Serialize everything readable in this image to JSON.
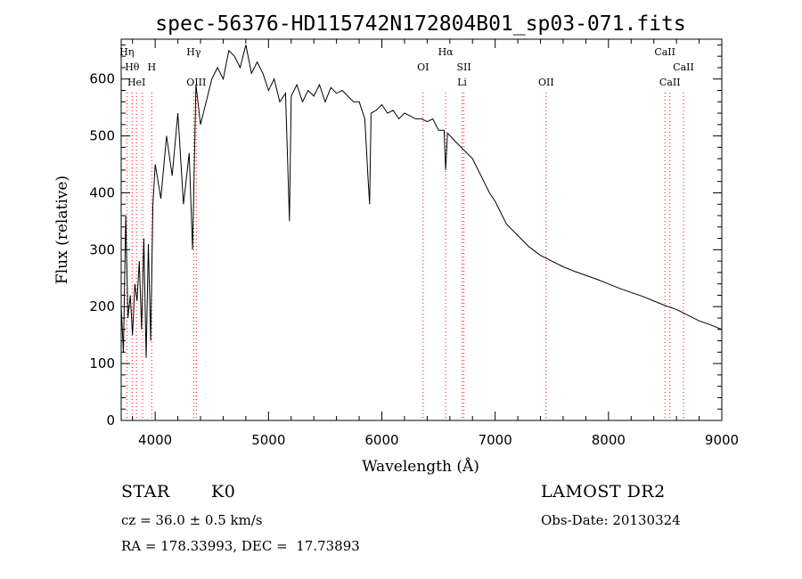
{
  "chart_data": {
    "type": "line",
    "title": "spec-56376-HD115742N172804B01_sp03-071.fits",
    "xlabel": "Wavelength (Å)",
    "ylabel": "Flux (relative)",
    "xlim": [
      3700,
      9000
    ],
    "ylim": [
      0,
      670
    ],
    "xticks": [
      4000,
      5000,
      6000,
      7000,
      8000,
      9000
    ],
    "yticks": [
      0,
      100,
      200,
      300,
      400,
      500,
      600
    ],
    "grid": false,
    "line_color": "#000000",
    "marker_color": "#ff0000",
    "series": [
      {
        "x": [
          3700,
          3720,
          3740,
          3760,
          3780,
          3800,
          3820,
          3840,
          3860,
          3880,
          3900,
          3920,
          3940,
          3960,
          3980,
          4000,
          4050,
          4100,
          4150,
          4200,
          4250,
          4300,
          4330,
          4360,
          4400,
          4450,
          4500,
          4550,
          4600,
          4650,
          4700,
          4750,
          4800,
          4850,
          4900,
          4950,
          5000,
          5050,
          5100,
          5150,
          5170,
          5185,
          5200,
          5250,
          5300,
          5350,
          5400,
          5450,
          5500,
          5550,
          5600,
          5650,
          5700,
          5750,
          5800,
          5850,
          5880,
          5892,
          5905,
          5950,
          6000,
          6050,
          6100,
          6150,
          6200,
          6250,
          6300,
          6350,
          6400,
          6450,
          6500,
          6550,
          6563,
          6580,
          6650,
          6700,
          6750,
          6800,
          6850,
          6900,
          6950,
          7000,
          7100,
          7200,
          7300,
          7400,
          7500,
          7600,
          7700,
          7800,
          7900,
          8000,
          8100,
          8200,
          8300,
          8400,
          8500,
          8600,
          8700,
          8800,
          8900,
          9000
        ],
        "y": [
          200,
          120,
          360,
          180,
          220,
          150,
          240,
          210,
          280,
          160,
          320,
          110,
          310,
          140,
          380,
          450,
          390,
          500,
          430,
          540,
          380,
          470,
          300,
          590,
          520,
          560,
          600,
          620,
          600,
          650,
          640,
          620,
          660,
          610,
          630,
          610,
          580,
          600,
          560,
          575,
          450,
          350,
          570,
          590,
          560,
          580,
          570,
          590,
          560,
          585,
          575,
          580,
          570,
          560,
          560,
          530,
          420,
          380,
          540,
          545,
          555,
          540,
          545,
          530,
          540,
          535,
          530,
          530,
          525,
          530,
          510,
          510,
          440,
          505,
          490,
          480,
          470,
          460,
          440,
          420,
          400,
          385,
          345,
          325,
          305,
          290,
          280,
          270,
          262,
          255,
          248,
          240,
          232,
          225,
          218,
          210,
          202,
          195,
          185,
          175,
          168,
          160
        ]
      }
    ],
    "line_markers": [
      {
        "x": 3750,
        "label": "Hη",
        "row": 1
      },
      {
        "x": 3797,
        "label": "Hθ",
        "row": 2
      },
      {
        "x": 3835,
        "label": "HeI",
        "row": 3
      },
      {
        "x": 3889,
        "label": "",
        "row": 0
      },
      {
        "x": 3970,
        "label": "H",
        "row": 2
      },
      {
        "x": 4340,
        "label": "Hγ",
        "row": 1
      },
      {
        "x": 4363,
        "label": "OIII",
        "row": 3
      },
      {
        "x": 6364,
        "label": "OI",
        "row": 2
      },
      {
        "x": 6563,
        "label": "Hα",
        "row": 1
      },
      {
        "x": 6708,
        "label": "Li",
        "row": 3
      },
      {
        "x": 6724,
        "label": "SII",
        "row": 2
      },
      {
        "x": 7450,
        "label": "OII",
        "row": 3
      },
      {
        "x": 8498,
        "label": "CaII",
        "row": 1
      },
      {
        "x": 8542,
        "label": "CaII",
        "row": 3
      },
      {
        "x": 8662,
        "label": "CaII",
        "row": 2
      }
    ]
  },
  "info": {
    "object_class": "STAR",
    "subclass": "K0",
    "survey": "LAMOST DR2",
    "redshift": "cz = 36.0 ± 0.5 km/s",
    "obs_date": "Obs-Date: 20130324",
    "coords": "RA = 178.33993, DEC =  17.73893"
  }
}
